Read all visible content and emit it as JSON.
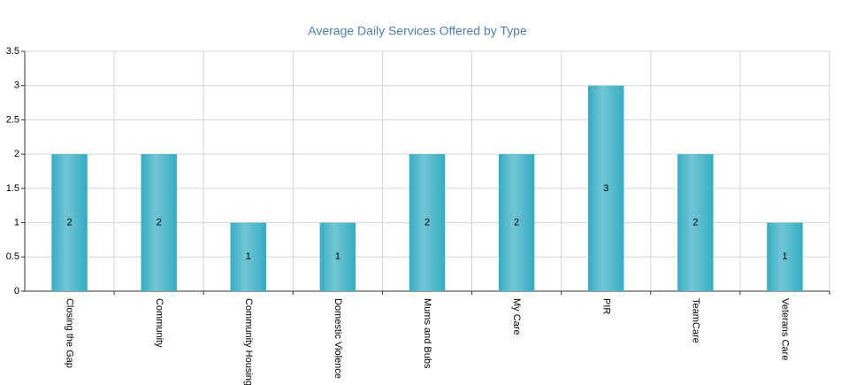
{
  "chart_data": {
    "type": "bar",
    "title": "Average Daily Services Offered by Type",
    "categories": [
      "Closing the Gap",
      "Community",
      "Community Housing",
      "Domestic Violence",
      "Mums and Bubs",
      "My Care",
      "PIR",
      "TeamCare",
      "Veterans Care"
    ],
    "values": [
      2,
      2,
      1,
      1,
      2,
      2,
      3,
      2,
      1
    ],
    "color": "#35adc2",
    "ylim": [
      0,
      3.5
    ],
    "yticks": [
      0,
      0.5,
      1,
      1.5,
      2,
      2.5,
      3,
      3.5
    ],
    "grid": true
  }
}
